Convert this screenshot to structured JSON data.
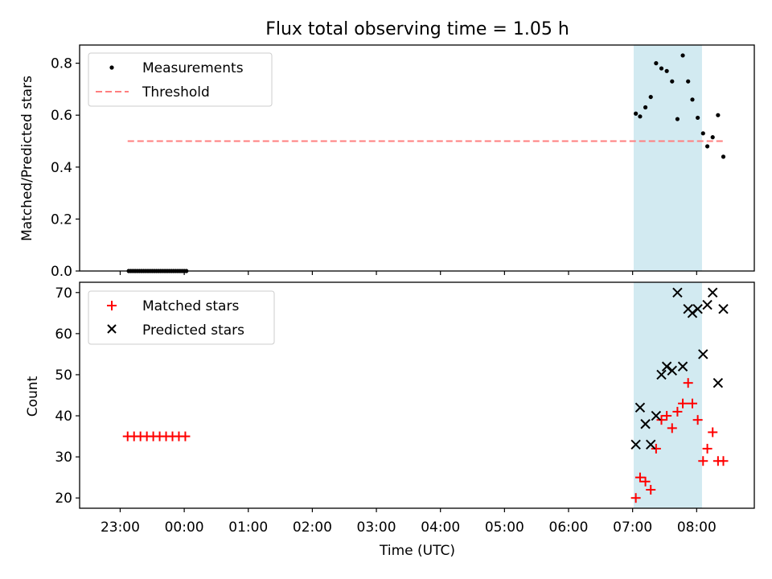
{
  "chart_data": [
    {
      "type": "scatter",
      "title": "Flux total observing time = 1.05 h",
      "xlabel": "",
      "ylabel": "Matched/Predicted stars",
      "ylim": [
        0,
        0.87
      ],
      "yticks": [
        "0.0",
        "0.2",
        "0.4",
        "0.6",
        "0.8"
      ],
      "ytick_values": [
        0,
        0.2,
        0.4,
        0.6,
        0.8
      ],
      "highlight_span": {
        "from": "07:01",
        "to": "08:05",
        "color": "#add8e6"
      },
      "threshold": {
        "name": "Threshold",
        "y": 0.5,
        "x_from": "23:07",
        "x_to": "08:25",
        "color": "#ff7f7f"
      },
      "legend": {
        "placement": "top-left",
        "entries": [
          "Measurements",
          "Threshold"
        ]
      },
      "series": [
        {
          "name": "Measurements",
          "marker": "dot",
          "color": "#000000",
          "x": [
            "23:08",
            "23:10",
            "23:12",
            "23:14",
            "23:16",
            "23:18",
            "23:20",
            "23:22",
            "23:24",
            "23:26",
            "23:28",
            "23:30",
            "23:32",
            "23:34",
            "23:36",
            "23:38",
            "23:40",
            "23:42",
            "23:44",
            "23:46",
            "23:48",
            "23:50",
            "23:52",
            "23:54",
            "23:56",
            "23:58",
            "00:00",
            "00:02",
            "07:03",
            "07:07",
            "07:12",
            "07:17",
            "07:22",
            "07:27",
            "07:32",
            "07:37",
            "07:42",
            "07:47",
            "07:52",
            "07:56",
            "08:01",
            "08:06",
            "08:10",
            "08:15",
            "08:20",
            "08:25"
          ],
          "y": [
            0,
            0,
            0,
            0,
            0,
            0,
            0,
            0,
            0,
            0,
            0,
            0,
            0,
            0,
            0,
            0,
            0,
            0,
            0,
            0,
            0,
            0,
            0,
            0,
            0,
            0,
            0,
            0,
            0.606,
            0.595,
            0.63,
            0.67,
            0.8,
            0.78,
            0.77,
            0.73,
            0.585,
            0.83,
            0.73,
            0.66,
            0.59,
            0.53,
            0.48,
            0.515,
            0.6,
            0.44
          ]
        }
      ]
    },
    {
      "type": "scatter",
      "title": "",
      "xlabel": "Time (UTC)",
      "ylabel": "Count",
      "ylim": [
        17.5,
        72.5
      ],
      "yticks": [
        "20",
        "30",
        "40",
        "50",
        "60",
        "70"
      ],
      "ytick_values": [
        20,
        30,
        40,
        50,
        60,
        70
      ],
      "xticks": [
        "23:00",
        "00:00",
        "01:00",
        "02:00",
        "03:00",
        "04:00",
        "05:00",
        "06:00",
        "07:00",
        "08:00"
      ],
      "highlight_span": {
        "from": "07:01",
        "to": "08:05",
        "color": "#add8e6"
      },
      "legend": {
        "placement": "top-left",
        "entries": [
          "Matched stars",
          "Predicted stars"
        ]
      },
      "series": [
        {
          "name": "Matched stars",
          "marker": "plus",
          "color": "#ff0000",
          "x": [
            "23:07",
            "23:13",
            "23:19",
            "23:25",
            "23:31",
            "23:37",
            "23:43",
            "23:49",
            "23:55",
            "00:01",
            "07:03",
            "07:07",
            "07:12",
            "07:17",
            "07:22",
            "07:27",
            "07:32",
            "07:37",
            "07:42",
            "07:47",
            "07:52",
            "07:56",
            "08:01",
            "08:06",
            "08:10",
            "08:15",
            "08:20",
            "08:25"
          ],
          "y": [
            35,
            35,
            35,
            35,
            35,
            35,
            35,
            35,
            35,
            35,
            20,
            25,
            24,
            22,
            32,
            39,
            40,
            37,
            41,
            43,
            48,
            43,
            39,
            29,
            32,
            36,
            29,
            29
          ]
        },
        {
          "name": "Predicted stars",
          "marker": "x",
          "color": "#000000",
          "x": [
            "07:03",
            "07:07",
            "07:12",
            "07:17",
            "07:22",
            "07:27",
            "07:32",
            "07:37",
            "07:42",
            "07:47",
            "07:52",
            "07:56",
            "08:01",
            "08:06",
            "08:10",
            "08:15",
            "08:20",
            "08:25"
          ],
          "y": [
            33,
            42,
            38,
            33,
            40,
            50,
            52,
            51,
            70,
            52,
            66,
            65,
            66,
            55,
            67,
            70,
            48,
            66
          ]
        }
      ]
    }
  ]
}
